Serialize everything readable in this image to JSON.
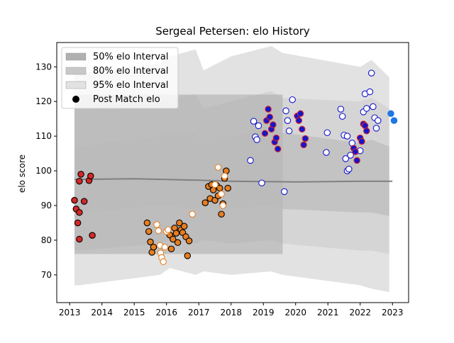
{
  "chart_data": {
    "type": "scatter",
    "title": "Sergeal Petersen: elo History",
    "xlabel": "",
    "ylabel": "elo score",
    "xlim": [
      2012.6,
      2023.5
    ],
    "ylim": [
      62,
      137
    ],
    "x_ticks": [
      2013,
      2014,
      2015,
      2016,
      2017,
      2018,
      2019,
      2020,
      2021,
      2022,
      2023
    ],
    "x_tick_labels": [
      "2013",
      "2014",
      "2015",
      "2016",
      "2017",
      "2018",
      "2019",
      "2020",
      "2021",
      "2022",
      "2023"
    ],
    "y_ticks": [
      70,
      80,
      90,
      100,
      110,
      120,
      130
    ],
    "y_tick_labels": [
      "70",
      "80",
      "90",
      "100",
      "110",
      "120",
      "130"
    ],
    "grid": false,
    "legend": {
      "placement": "top-left",
      "entries": [
        {
          "label": "50% elo Interval",
          "color": "#b0b0b0",
          "kind": "patch"
        },
        {
          "label": "80% elo Interval",
          "color": "#c8c8c8",
          "kind": "patch"
        },
        {
          "label": "95% elo Interval",
          "color": "#e2e2e2",
          "kind": "patch"
        },
        {
          "label": "Post Match elo",
          "color": "#000000",
          "kind": "dot"
        }
      ]
    },
    "bands": {
      "band95": {
        "color": "#e2e2e2",
        "upper": [
          [
            2013.15,
            128
          ],
          [
            2013.3,
            128
          ],
          [
            2015.8,
            131
          ],
          [
            2016.1,
            133
          ],
          [
            2016.9,
            135
          ],
          [
            2017.15,
            129
          ],
          [
            2018.0,
            133
          ],
          [
            2019.25,
            136
          ],
          [
            2019.6,
            134
          ],
          [
            2022.0,
            130
          ],
          [
            2022.35,
            132
          ],
          [
            2022.9,
            127
          ]
        ],
        "lower": [
          [
            2013.15,
            67
          ],
          [
            2013.3,
            67
          ],
          [
            2015.8,
            70
          ],
          [
            2016.1,
            72
          ],
          [
            2016.9,
            70
          ],
          [
            2017.15,
            71
          ],
          [
            2018.0,
            70
          ],
          [
            2019.25,
            71
          ],
          [
            2019.6,
            70
          ],
          [
            2022.0,
            67
          ],
          [
            2022.35,
            66
          ],
          [
            2022.9,
            65
          ]
        ]
      },
      "band80": {
        "color": "#d2d2d2",
        "upper": [
          [
            2013.15,
            118
          ],
          [
            2013.3,
            118
          ],
          [
            2015.8,
            120
          ],
          [
            2016.1,
            121
          ],
          [
            2016.9,
            122
          ],
          [
            2017.15,
            118
          ],
          [
            2018.0,
            120
          ],
          [
            2019.25,
            123
          ],
          [
            2019.6,
            121
          ],
          [
            2022.0,
            120
          ],
          [
            2022.35,
            121
          ],
          [
            2022.9,
            118
          ]
        ],
        "lower": [
          [
            2013.15,
            77
          ],
          [
            2013.3,
            77
          ],
          [
            2015.8,
            79
          ],
          [
            2016.1,
            80
          ],
          [
            2016.9,
            79
          ],
          [
            2017.15,
            80
          ],
          [
            2018.0,
            79
          ],
          [
            2019.25,
            80
          ],
          [
            2019.6,
            79
          ],
          [
            2022.0,
            77
          ],
          [
            2022.35,
            77
          ],
          [
            2022.9,
            76
          ]
        ]
      },
      "band50": {
        "color": "#bbbbbb",
        "upper": [
          [
            2013.15,
            107
          ],
          [
            2013.3,
            107
          ],
          [
            2015.8,
            110
          ],
          [
            2016.1,
            111
          ],
          [
            2016.9,
            111
          ],
          [
            2017.15,
            108
          ],
          [
            2018.0,
            110
          ],
          [
            2019.25,
            112
          ],
          [
            2019.6,
            111
          ],
          [
            2022.0,
            108
          ],
          [
            2022.35,
            109
          ],
          [
            2022.9,
            107
          ]
        ],
        "lower": [
          [
            2013.15,
            88
          ],
          [
            2013.3,
            88
          ],
          [
            2015.8,
            90
          ],
          [
            2016.1,
            90
          ],
          [
            2016.9,
            89
          ],
          [
            2017.15,
            90
          ],
          [
            2018.0,
            89
          ],
          [
            2019.25,
            90
          ],
          [
            2019.6,
            89
          ],
          [
            2022.0,
            88
          ],
          [
            2022.35,
            88
          ],
          [
            2022.9,
            87
          ]
        ]
      }
    },
    "dark_region": {
      "x_start": 2013.15,
      "x_end": 2019.6,
      "upper": 122,
      "lower": 76,
      "color": "#a9a9a9"
    },
    "mean_line": {
      "color": "#808080",
      "points": [
        [
          2013.15,
          97.5
        ],
        [
          2014.0,
          97.6
        ],
        [
          2015.0,
          97.7
        ],
        [
          2016.0,
          97.5
        ],
        [
          2017.0,
          97.3
        ],
        [
          2018.0,
          97.0
        ],
        [
          2019.0,
          96.9
        ],
        [
          2020.0,
          96.8
        ],
        [
          2021.0,
          96.9
        ],
        [
          2022.0,
          97.0
        ],
        [
          2023.0,
          97.0
        ]
      ]
    },
    "series": [
      {
        "name": "2013",
        "edge": "#000000",
        "fill": "#d62728",
        "points": [
          [
            2013.15,
            91.5
          ],
          [
            2013.2,
            89.0
          ],
          [
            2013.25,
            85.0
          ],
          [
            2013.3,
            80.3
          ],
          [
            2013.3,
            88.0
          ],
          [
            2013.3,
            97.0
          ],
          [
            2013.35,
            99.0
          ],
          [
            2013.45,
            91.2
          ],
          [
            2013.6,
            97.2
          ],
          [
            2013.65,
            98.5
          ],
          [
            2013.7,
            81.4
          ]
        ]
      },
      {
        "name": "2015-2016",
        "edge": "#000000",
        "fill": "#e67e22",
        "points": [
          [
            2015.4,
            85.0
          ],
          [
            2015.45,
            82.5
          ],
          [
            2015.5,
            79.5
          ],
          [
            2015.55,
            76.5
          ],
          [
            2015.6,
            78.0
          ],
          [
            2016.1,
            81.5
          ],
          [
            2016.15,
            77.5
          ],
          [
            2016.2,
            80.3
          ],
          [
            2016.25,
            83.5
          ],
          [
            2016.3,
            82.0
          ],
          [
            2016.35,
            79.3
          ],
          [
            2016.4,
            85.0
          ],
          [
            2016.45,
            83.0
          ],
          [
            2016.5,
            82.2
          ],
          [
            2016.55,
            84.0
          ],
          [
            2016.6,
            81.0
          ],
          [
            2016.65,
            75.5
          ],
          [
            2016.7,
            79.8
          ]
        ]
      },
      {
        "name": "2015-2016 hollow",
        "edge": "#e67e22",
        "fill": "#ffffff",
        "points": [
          [
            2015.7,
            84.5
          ],
          [
            2015.75,
            82.7
          ],
          [
            2015.8,
            78.5
          ],
          [
            2015.82,
            76.3
          ],
          [
            2015.85,
            75.0
          ],
          [
            2015.9,
            73.8
          ],
          [
            2015.95,
            78.0
          ],
          [
            2016.0,
            82.5
          ],
          [
            2016.05,
            83.0
          ],
          [
            2016.8,
            87.5
          ]
        ]
      },
      {
        "name": "2017",
        "edge": "#000000",
        "fill": "#e67e22",
        "points": [
          [
            2017.2,
            90.8
          ],
          [
            2017.3,
            95.5
          ],
          [
            2017.35,
            92.0
          ],
          [
            2017.4,
            96.0
          ],
          [
            2017.45,
            94.5
          ],
          [
            2017.5,
            91.5
          ],
          [
            2017.55,
            95.8
          ],
          [
            2017.6,
            92.8
          ],
          [
            2017.65,
            95.0
          ],
          [
            2017.7,
            87.5
          ],
          [
            2017.75,
            90.5
          ],
          [
            2017.8,
            97.8
          ],
          [
            2017.85,
            100.0
          ],
          [
            2017.9,
            95.0
          ]
        ]
      },
      {
        "name": "2017 hollow",
        "edge": "#e67e22",
        "fill": "#ffffff",
        "points": [
          [
            2017.5,
            96.0
          ],
          [
            2017.6,
            101.0
          ],
          [
            2017.7,
            93.3
          ],
          [
            2017.75,
            90.0
          ],
          [
            2017.8,
            98.5
          ]
        ]
      },
      {
        "name": "2019 red",
        "edge": "#d62728",
        "fill": "#1515cc",
        "points": [
          [
            2019.05,
            110.8
          ],
          [
            2019.1,
            114.5
          ],
          [
            2019.15,
            117.8
          ],
          [
            2019.2,
            115.5
          ],
          [
            2019.25,
            112.0
          ],
          [
            2019.3,
            113.3
          ],
          [
            2019.35,
            108.3
          ],
          [
            2019.4,
            109.5
          ],
          [
            2019.45,
            106.3
          ]
        ]
      },
      {
        "name": "2018-2019 hollow",
        "edge": "#1515cc",
        "fill": "#ffffff",
        "points": [
          [
            2018.6,
            103.0
          ],
          [
            2018.7,
            114.3
          ],
          [
            2018.75,
            109.8
          ],
          [
            2018.8,
            109.0
          ],
          [
            2018.85,
            113.0
          ],
          [
            2018.95,
            96.5
          ],
          [
            2019.65,
            94.0
          ],
          [
            2019.7,
            117.3
          ],
          [
            2019.75,
            114.5
          ],
          [
            2019.8,
            111.5
          ],
          [
            2019.9,
            120.5
          ]
        ]
      },
      {
        "name": "2020 red",
        "edge": "#d62728",
        "fill": "#1515cc",
        "points": [
          [
            2020.05,
            115.8
          ],
          [
            2020.1,
            114.5
          ],
          [
            2020.15,
            116.5
          ],
          [
            2020.2,
            112.0
          ],
          [
            2020.25,
            107.5
          ],
          [
            2020.3,
            109.3
          ]
        ]
      },
      {
        "name": "2020-2022 hollow",
        "edge": "#1515cc",
        "fill": "#ffffff",
        "points": [
          [
            2020.95,
            105.3
          ],
          [
            2020.98,
            111.0
          ],
          [
            2021.4,
            117.8
          ],
          [
            2021.45,
            115.7
          ],
          [
            2021.5,
            110.3
          ],
          [
            2021.55,
            103.5
          ],
          [
            2021.6,
            110.0
          ],
          [
            2021.6,
            100.0
          ],
          [
            2021.65,
            100.5
          ],
          [
            2021.7,
            104.5
          ],
          [
            2021.75,
            108.0
          ],
          [
            2022.0,
            105.8
          ],
          [
            2022.1,
            117.0
          ],
          [
            2022.15,
            122.2
          ],
          [
            2022.2,
            118.0
          ],
          [
            2022.3,
            122.8
          ],
          [
            2022.35,
            128.2
          ],
          [
            2022.4,
            118.5
          ],
          [
            2022.45,
            115.3
          ],
          [
            2022.5,
            112.3
          ],
          [
            2022.55,
            114.5
          ]
        ]
      },
      {
        "name": "2021-2022 red",
        "edge": "#d62728",
        "fill": "#1515cc",
        "points": [
          [
            2021.8,
            106.5
          ],
          [
            2021.85,
            105.5
          ],
          [
            2021.9,
            103.0
          ],
          [
            2022.0,
            109.5
          ],
          [
            2022.05,
            108.5
          ],
          [
            2022.1,
            113.5
          ],
          [
            2022.15,
            113.0
          ],
          [
            2022.2,
            111.5
          ]
        ]
      },
      {
        "name": "2023",
        "edge": "#1f77e4",
        "fill": "#1f77e4",
        "points": [
          [
            2022.95,
            116.5
          ],
          [
            2023.05,
            114.5
          ]
        ]
      }
    ]
  }
}
